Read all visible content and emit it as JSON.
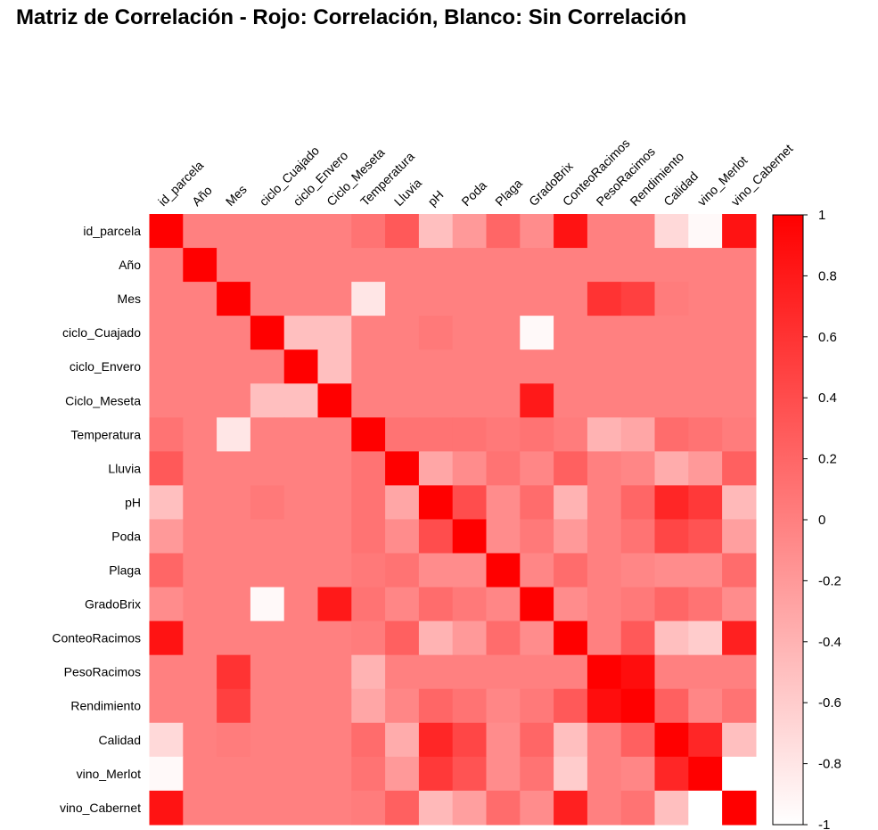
{
  "chart_data": {
    "type": "heatmap",
    "title": "Matriz de Correlación - Rojo: Correlación, Blanco: Sin Correlación",
    "variables": [
      "id_parcela",
      "Año",
      "Mes",
      "ciclo_Cuajado",
      "ciclo_Envero",
      "Ciclo_Meseta",
      "Temperatura",
      "Lluvia",
      "pH",
      "Poda",
      "Plaga",
      "GradoBrix",
      "ConteoRacimos",
      "PesoRacimos",
      "Rendimiento",
      "Calidad",
      "vino_Merlot",
      "vino_Cabernet"
    ],
    "matrix": [
      [
        1,
        0,
        0,
        0,
        0,
        0,
        0.1,
        0.3,
        -0.5,
        -0.2,
        0.2,
        -0.1,
        0.85,
        0,
        0,
        -0.7,
        -0.95,
        0.85
      ],
      [
        0,
        1,
        0,
        0,
        0,
        0,
        0,
        0,
        0,
        0,
        0,
        0,
        0,
        0,
        0,
        0,
        0,
        0
      ],
      [
        0,
        0,
        1,
        0,
        0,
        0,
        -0.8,
        0,
        0,
        0,
        0,
        0,
        0,
        0.6,
        0.5,
        0.03,
        0,
        0
      ],
      [
        0,
        0,
        0,
        1,
        -0.5,
        -0.5,
        0,
        0,
        0.05,
        0,
        0,
        -0.95,
        0,
        0,
        0,
        0,
        0,
        0
      ],
      [
        0,
        0,
        0,
        0,
        1,
        -0.5,
        0,
        0,
        0,
        0,
        0,
        0,
        0,
        0,
        0,
        0,
        0,
        0
      ],
      [
        0,
        0,
        0,
        -0.5,
        -0.5,
        1,
        0,
        0,
        0,
        0,
        0,
        0.8,
        0,
        0,
        0,
        0,
        0,
        0
      ],
      [
        0.1,
        0,
        -0.8,
        0,
        0,
        0,
        1,
        0.1,
        0.1,
        0.1,
        0.05,
        0.1,
        0.03,
        -0.4,
        -0.3,
        0.15,
        0.1,
        0.03
      ],
      [
        0.3,
        0,
        0,
        0,
        0,
        0,
        0.1,
        1,
        -0.3,
        -0.1,
        0.1,
        -0.05,
        0.25,
        0,
        -0.05,
        -0.35,
        -0.2,
        0.25
      ],
      [
        -0.5,
        0,
        0,
        0.05,
        0,
        0,
        0.1,
        -0.3,
        1,
        0.4,
        -0.1,
        0.15,
        -0.4,
        0,
        0.2,
        0.7,
        0.55,
        -0.45
      ],
      [
        -0.2,
        0,
        0,
        0,
        0,
        0,
        0.1,
        -0.1,
        0.4,
        1,
        -0.1,
        0.05,
        -0.2,
        0,
        0.1,
        0.45,
        0.35,
        -0.25
      ],
      [
        0.2,
        0,
        0,
        0,
        0,
        0,
        0.05,
        0.1,
        -0.1,
        -0.1,
        1,
        -0.05,
        0.15,
        0,
        -0.05,
        -0.1,
        -0.1,
        0.15
      ],
      [
        -0.1,
        0,
        0,
        -0.95,
        0,
        0.8,
        0.1,
        -0.05,
        0.15,
        0.05,
        -0.05,
        1,
        -0.1,
        0,
        0.05,
        0.2,
        0.1,
        -0.1
      ],
      [
        0.85,
        0,
        0,
        0,
        0,
        0,
        0.03,
        0.25,
        -0.4,
        -0.2,
        0.15,
        -0.1,
        1,
        0,
        0.3,
        -0.5,
        -0.6,
        0.75
      ],
      [
        0,
        0,
        0.6,
        0,
        0,
        0,
        -0.4,
        0,
        0,
        0,
        0,
        0,
        0,
        1,
        0.9,
        0,
        0,
        0
      ],
      [
        0,
        0,
        0.5,
        0,
        0,
        0,
        -0.3,
        -0.05,
        0.2,
        0.1,
        -0.05,
        0.05,
        0.3,
        0.9,
        1,
        0.25,
        -0.05,
        0.1
      ],
      [
        -0.7,
        0,
        0.03,
        0,
        0,
        0,
        0.15,
        -0.35,
        0.7,
        0.45,
        -0.1,
        0.2,
        -0.5,
        0,
        0.25,
        1,
        0.7,
        -0.5
      ],
      [
        -0.95,
        0,
        0,
        0,
        0,
        0,
        0.1,
        -0.2,
        0.55,
        0.35,
        -0.1,
        0.1,
        -0.6,
        0,
        -0.05,
        0.7,
        1,
        -1
      ],
      [
        0.85,
        0,
        0,
        0,
        0,
        0,
        0.03,
        0.25,
        -0.45,
        -0.25,
        0.15,
        -0.1,
        0.75,
        0,
        0.1,
        -0.5,
        -1,
        1
      ]
    ],
    "colorbar": {
      "ticks": [
        "1",
        "0.8",
        "0.6",
        "0.4",
        "0.2",
        "0",
        "-0.2",
        "-0.4",
        "-0.6",
        "-0.8",
        "-1"
      ],
      "range": [
        -1,
        1
      ],
      "color_high": "#ff0000",
      "color_low": "#ffffff"
    }
  }
}
